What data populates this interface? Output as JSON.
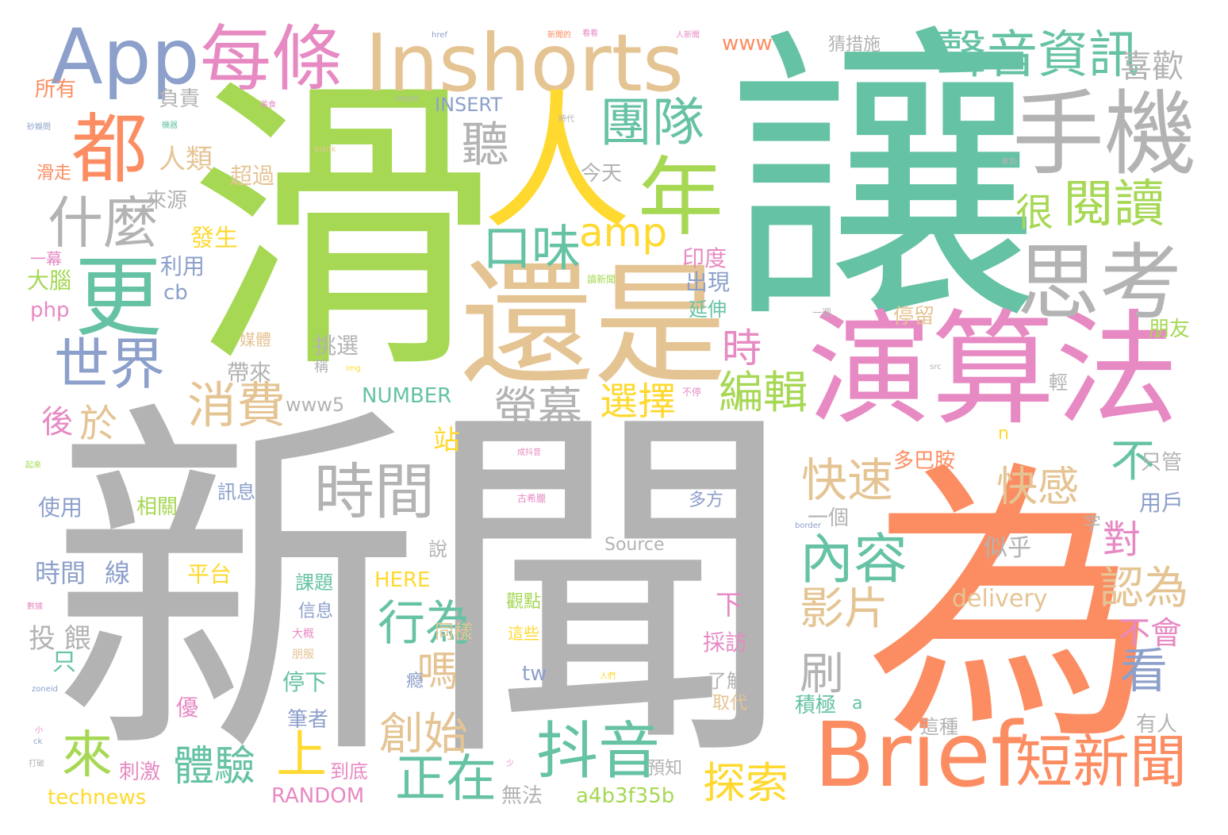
{
  "colors": {
    "teal": "#66c2a5",
    "orange": "#fc8d62",
    "blue": "#8da0cb",
    "pink": "#e78ac3",
    "green": "#a6d854",
    "yellow": "#ffd92f",
    "tan": "#e5c494",
    "gray": "#b3b3b3"
  },
  "words": [
    {
      "text": "讓",
      "color": "teal"
    },
    {
      "text": "新聞",
      "color": "gray"
    },
    {
      "text": "滑",
      "color": "green"
    },
    {
      "text": "為",
      "color": "orange"
    },
    {
      "text": "演算法",
      "color": "pink"
    },
    {
      "text": "Inshorts",
      "color": "tan"
    },
    {
      "text": "還是",
      "color": "tan"
    },
    {
      "text": "App",
      "color": "blue"
    },
    {
      "text": "每條",
      "color": "pink"
    },
    {
      "text": "人",
      "color": "yellow"
    },
    {
      "text": "手機",
      "color": "gray"
    },
    {
      "text": "Brief",
      "color": "orange"
    },
    {
      "text": "都",
      "color": "orange"
    },
    {
      "text": "更",
      "color": "teal"
    },
    {
      "text": "年",
      "color": "green"
    },
    {
      "text": "思考",
      "color": "gray"
    },
    {
      "text": "聲音資訊",
      "color": "teal"
    },
    {
      "text": "團隊",
      "color": "teal"
    },
    {
      "text": "什麼",
      "color": "gray"
    },
    {
      "text": "世界",
      "color": "blue"
    },
    {
      "text": "時間",
      "color": "gray"
    },
    {
      "text": "抖音",
      "color": "teal"
    },
    {
      "text": "短新聞",
      "color": "orange"
    },
    {
      "text": "內容",
      "color": "teal"
    },
    {
      "text": "閱讀",
      "color": "green"
    },
    {
      "text": "口味",
      "color": "teal"
    },
    {
      "text": "amp",
      "color": "yellow"
    },
    {
      "text": "聽",
      "color": "gray"
    },
    {
      "text": "很",
      "color": "green"
    },
    {
      "text": "喜歡",
      "color": "gray"
    },
    {
      "text": "消費",
      "color": "tan"
    },
    {
      "text": "時",
      "color": "pink"
    },
    {
      "text": "螢幕",
      "color": "gray"
    },
    {
      "text": "編輯",
      "color": "green"
    },
    {
      "text": "選擇",
      "color": "yellow"
    },
    {
      "text": "快速",
      "color": "tan"
    },
    {
      "text": "快感",
      "color": "tan"
    },
    {
      "text": "不",
      "color": "teal"
    },
    {
      "text": "對",
      "color": "pink"
    },
    {
      "text": "認為",
      "color": "tan"
    },
    {
      "text": "行為",
      "color": "teal"
    },
    {
      "text": "影片",
      "color": "tan"
    },
    {
      "text": "來",
      "color": "green"
    },
    {
      "text": "上",
      "color": "yellow"
    },
    {
      "text": "體驗",
      "color": "teal"
    },
    {
      "text": "正在",
      "color": "teal"
    },
    {
      "text": "創始",
      "color": "tan"
    },
    {
      "text": "嗎",
      "color": "tan"
    },
    {
      "text": "刷",
      "color": "gray"
    },
    {
      "text": "看",
      "color": "blue"
    },
    {
      "text": "探索",
      "color": "yellow"
    },
    {
      "text": "不會",
      "color": "pink"
    },
    {
      "text": "於",
      "color": "tan"
    },
    {
      "text": "後",
      "color": "pink"
    },
    {
      "text": "人類",
      "color": "tan"
    },
    {
      "text": "今天",
      "color": "gray"
    },
    {
      "text": "超過",
      "color": "tan"
    },
    {
      "text": "來源",
      "color": "gray"
    },
    {
      "text": "負責",
      "color": "gray"
    },
    {
      "text": "所有",
      "color": "orange"
    },
    {
      "text": "滑走",
      "color": "orange"
    },
    {
      "text": "INSERT",
      "color": "blue"
    },
    {
      "text": "www",
      "color": "orange"
    },
    {
      "text": "猜措施",
      "color": "gray"
    },
    {
      "text": "發生",
      "color": "yellow"
    },
    {
      "text": "利用",
      "color": "blue"
    },
    {
      "text": "大腦",
      "color": "green"
    },
    {
      "text": "cb",
      "color": "blue"
    },
    {
      "text": "php",
      "color": "pink"
    },
    {
      "text": "一幕",
      "color": "pink"
    },
    {
      "text": "印度",
      "color": "pink"
    },
    {
      "text": "出現",
      "color": "blue"
    },
    {
      "text": "延伸",
      "color": "teal"
    },
    {
      "text": "停留",
      "color": "tan"
    },
    {
      "text": "朋友",
      "color": "green"
    },
    {
      "text": "挑選",
      "color": "gray"
    },
    {
      "text": "帶來",
      "color": "gray"
    },
    {
      "text": "媒體",
      "color": "tan"
    },
    {
      "text": "www5",
      "color": "gray"
    },
    {
      "text": "NUMBER",
      "color": "teal"
    },
    {
      "text": "站",
      "color": "yellow"
    },
    {
      "text": "多巴胺",
      "color": "orange"
    },
    {
      "text": "只管",
      "color": "gray"
    },
    {
      "text": "使用",
      "color": "blue"
    },
    {
      "text": "相關",
      "color": "green"
    },
    {
      "text": "訊息",
      "color": "blue"
    },
    {
      "text": "多方",
      "color": "blue"
    },
    {
      "text": "一個",
      "color": "gray"
    },
    {
      "text": "用戶",
      "color": "blue"
    },
    {
      "text": "時間",
      "color": "blue"
    },
    {
      "text": "線",
      "color": "blue"
    },
    {
      "text": "平台",
      "color": "yellow"
    },
    {
      "text": "Source",
      "color": "gray"
    },
    {
      "text": "似乎",
      "color": "gray"
    },
    {
      "text": "說",
      "color": "gray"
    },
    {
      "text": "HERE",
      "color": "yellow"
    },
    {
      "text": "delivery",
      "color": "tan"
    },
    {
      "text": "投 餵",
      "color": "gray"
    },
    {
      "text": "課題",
      "color": "teal"
    },
    {
      "text": "信息",
      "color": "blue"
    },
    {
      "text": "觀點",
      "color": "green"
    },
    {
      "text": "這些",
      "color": "yellow"
    },
    {
      "text": "同樣",
      "color": "tan"
    },
    {
      "text": "採訪",
      "color": "pink"
    },
    {
      "text": "只",
      "color": "teal"
    },
    {
      "text": "停下",
      "color": "teal"
    },
    {
      "text": "tw",
      "color": "blue"
    },
    {
      "text": "了解",
      "color": "gray"
    },
    {
      "text": "積極",
      "color": "teal"
    },
    {
      "text": "取代",
      "color": "tan"
    },
    {
      "text": "優",
      "color": "pink"
    },
    {
      "text": "筆者",
      "color": "blue"
    },
    {
      "text": "這種",
      "color": "gray"
    },
    {
      "text": "有人",
      "color": "gray"
    },
    {
      "text": "刺激",
      "color": "pink"
    },
    {
      "text": "到底",
      "color": "pink"
    },
    {
      "text": "預知",
      "color": "gray"
    },
    {
      "text": "technews",
      "color": "yellow"
    },
    {
      "text": "RANDOM",
      "color": "pink"
    },
    {
      "text": "無法",
      "color": "gray"
    },
    {
      "text": "a4b3f35b",
      "color": "green"
    },
    {
      "text": "輕",
      "color": "gray"
    },
    {
      "text": "字",
      "color": "gray"
    },
    {
      "text": "下",
      "color": "pink"
    },
    {
      "text": "a",
      "color": "teal"
    },
    {
      "text": "n",
      "color": "yellow"
    },
    {
      "text": "href",
      "color": "blue"
    },
    {
      "text": "新聞的",
      "color": "orange"
    },
    {
      "text": "看看",
      "color": "pink"
    },
    {
      "text": "人新聞",
      "color": "pink"
    },
    {
      "text": "美食",
      "color": "pink"
    },
    {
      "text": "target",
      "color": "gray"
    },
    {
      "text": "時代",
      "color": "gray"
    },
    {
      "text": "機器",
      "color": "teal"
    },
    {
      "text": "砂娛問",
      "color": "blue"
    },
    {
      "text": "blank",
      "color": "tan"
    },
    {
      "text": "讀新聞",
      "color": "green"
    },
    {
      "text": "img",
      "color": "yellow"
    },
    {
      "text": "src",
      "color": "gray"
    },
    {
      "text": "zoneid",
      "color": "blue"
    },
    {
      "text": "border",
      "color": "blue"
    },
    {
      "text": "古希臘",
      "color": "pink"
    },
    {
      "text": "成抖音",
      "color": "pink"
    },
    {
      "text": "拿到",
      "color": "gray"
    },
    {
      "text": "不停",
      "color": "pink"
    },
    {
      "text": "瘾",
      "color": "blue"
    },
    {
      "text": "人們",
      "color": "yellow"
    },
    {
      "text": "起來",
      "color": "green"
    },
    {
      "text": "數據",
      "color": "pink"
    },
    {
      "text": "少",
      "color": "pink"
    },
    {
      "text": "一週",
      "color": "gray"
    },
    {
      "text": "稱",
      "color": "gray"
    },
    {
      "text": "大概",
      "color": "pink"
    },
    {
      "text": "朋服",
      "color": "tan"
    },
    {
      "text": "ck",
      "color": "blue"
    },
    {
      "text": "小",
      "color": "pink"
    },
    {
      "text": "打破",
      "color": "gray"
    }
  ]
}
